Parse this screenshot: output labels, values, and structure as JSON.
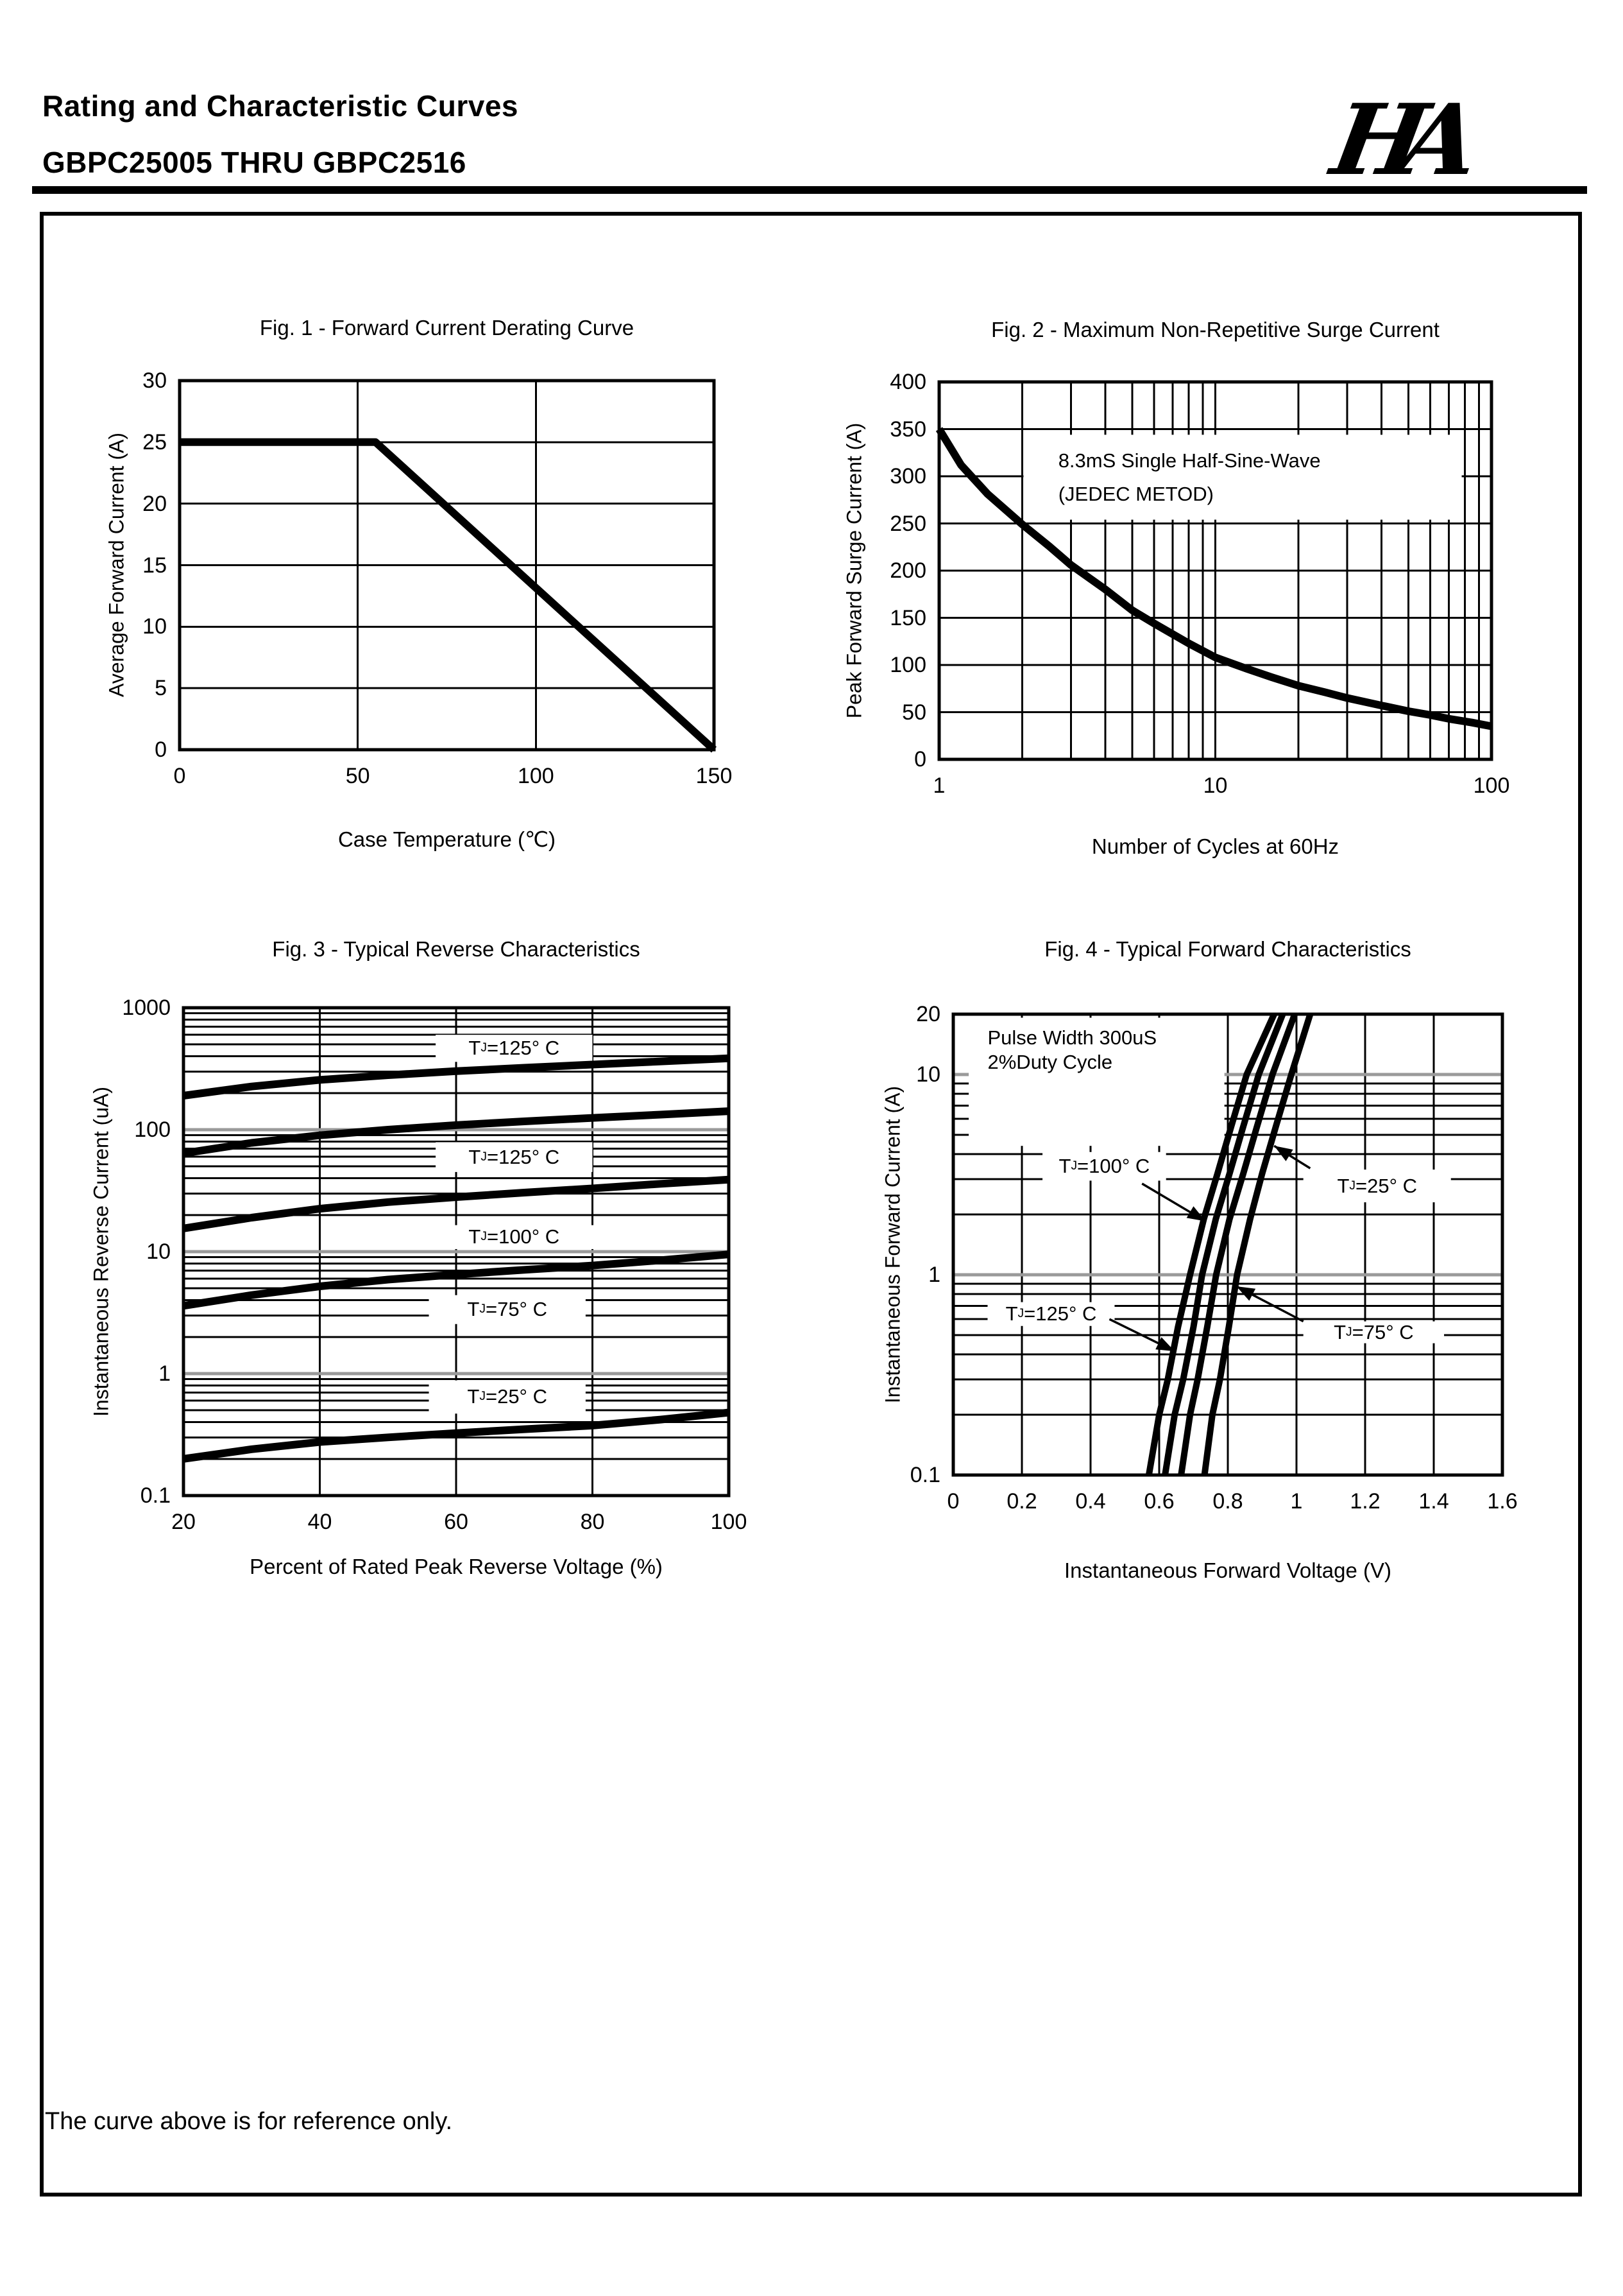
{
  "page": {
    "title": "Rating and Characteristic Curves",
    "part_range": "GBPC25005 THRU GBPC2516",
    "logo_text": "HA",
    "note": "The curve above is for reference only."
  },
  "chart_data": [
    {
      "type": "line",
      "title": "Fig. 1 - Forward Current Derating Curve",
      "xlabel": "Case Temperature (℃)",
      "ylabel": "Average Forward Current (A)",
      "x": {
        "scale": "linear",
        "min": 0,
        "max": 150,
        "ticks": [
          {
            "v": 0,
            "label": "0"
          },
          {
            "v": 50,
            "label": "50"
          },
          {
            "v": 100,
            "label": "100"
          },
          {
            "v": 150,
            "label": "150"
          }
        ],
        "grid": [
          50,
          100
        ]
      },
      "y": {
        "scale": "linear",
        "min": 0,
        "max": 30,
        "ticks": [
          {
            "v": 30,
            "label": "30"
          },
          {
            "v": 25,
            "label": "25"
          },
          {
            "v": 20,
            "label": "20"
          },
          {
            "v": 15,
            "label": "15"
          },
          {
            "v": 10,
            "label": "10"
          },
          {
            "v": 5,
            "label": "5"
          },
          {
            "v": 0,
            "label": "0"
          }
        ],
        "grid": [
          5,
          10,
          15,
          20,
          25
        ]
      },
      "series": [
        {
          "name": "forward-current-derating",
          "points": [
            [
              0,
              25
            ],
            [
              55,
              25
            ],
            [
              150,
              0
            ]
          ]
        }
      ],
      "annotations": [],
      "arrows": []
    },
    {
      "type": "line",
      "title": "Fig. 2 - Maximum Non-Repetitive Surge Current",
      "xlabel": "Number of Cycles at 60Hz",
      "ylabel": "Peak Forward Surge Current (A)",
      "x": {
        "scale": "log",
        "min": 1,
        "max": 100,
        "ticks": [
          {
            "v": 1,
            "label": "1"
          },
          {
            "v": 10,
            "label": "10"
          },
          {
            "v": 100,
            "label": "100"
          }
        ]
      },
      "y": {
        "scale": "linear",
        "min": 0,
        "max": 400,
        "ticks": [
          {
            "v": 400,
            "label": "400"
          },
          {
            "v": 350,
            "label": "350"
          },
          {
            "v": 300,
            "label": "300"
          },
          {
            "v": 250,
            "label": "250"
          },
          {
            "v": 200,
            "label": "200"
          },
          {
            "v": 150,
            "label": "150"
          },
          {
            "v": 100,
            "label": "100"
          },
          {
            "v": 50,
            "label": "50"
          },
          {
            "v": 0,
            "label": "0"
          }
        ],
        "grid": [
          50,
          100,
          150,
          200,
          250,
          300,
          350
        ]
      },
      "series": [
        {
          "name": "max-surge-current",
          "points": [
            [
              1,
              350
            ],
            [
              1.2,
              312
            ],
            [
              1.5,
              281
            ],
            [
              2,
              249
            ],
            [
              2.5,
              226
            ],
            [
              3,
              206
            ],
            [
              4,
              180
            ],
            [
              5,
              158
            ],
            [
              6,
              144
            ],
            [
              8,
              123
            ],
            [
              10,
              108
            ],
            [
              13,
              96
            ],
            [
              16,
              87
            ],
            [
              20,
              78
            ],
            [
              25,
              71
            ],
            [
              30,
              65
            ],
            [
              40,
              57
            ],
            [
              50,
              51
            ],
            [
              60,
              47
            ],
            [
              70,
              43
            ],
            [
              85,
              39
            ],
            [
              100,
              35
            ]
          ]
        }
      ],
      "annotations": [
        {
          "box": {
            "x1": 2.02,
            "y1": 254,
            "x2": 78,
            "y2": 344
          },
          "lines": [
            {
              "text": "8.3mS Single Half-Sine-Wave",
              "x": 2.7,
              "y": 316
            },
            {
              "text": "(JEDEC METOD)",
              "x": 2.7,
              "y": 281
            }
          ]
        }
      ],
      "arrows": []
    },
    {
      "type": "line",
      "title": "Fig. 3 - Typical Reverse Characteristics",
      "xlabel": "Percent of Rated Peak Reverse Voltage (%)",
      "ylabel": "Instantaneous Reverse Current (uA)",
      "x": {
        "scale": "linear",
        "min": 20,
        "max": 100,
        "ticks": [
          {
            "v": 20,
            "label": "20"
          },
          {
            "v": 40,
            "label": "40"
          },
          {
            "v": 60,
            "label": "60"
          },
          {
            "v": 80,
            "label": "80"
          },
          {
            "v": 100,
            "label": "100"
          }
        ],
        "grid": [
          40,
          60,
          80
        ]
      },
      "y": {
        "scale": "log",
        "min": 0.1,
        "max": 1000,
        "ticks": [
          {
            "v": 1000,
            "label": "1000"
          },
          {
            "v": 100,
            "label": "100"
          },
          {
            "v": 10,
            "label": "10"
          },
          {
            "v": 1,
            "label": "1"
          },
          {
            "v": 0.1,
            "label": "0.1"
          }
        ]
      },
      "series": [
        {
          "name": "TJ=125° C (upper)",
          "points": [
            [
              20,
              190
            ],
            [
              30,
              226
            ],
            [
              40,
              256
            ],
            [
              50,
              280
            ],
            [
              60,
              302
            ],
            [
              70,
              322
            ],
            [
              80,
              342
            ],
            [
              90,
              363
            ],
            [
              100,
              385
            ]
          ]
        },
        {
          "name": "TJ=125° C (lower)",
          "points": [
            [
              20,
              64
            ],
            [
              30,
              78
            ],
            [
              40,
              90
            ],
            [
              50,
              100
            ],
            [
              60,
              109
            ],
            [
              70,
              117
            ],
            [
              80,
              125
            ],
            [
              90,
              133
            ],
            [
              100,
              142
            ]
          ]
        },
        {
          "name": "TJ=100° C",
          "points": [
            [
              20,
              15.5
            ],
            [
              30,
              19
            ],
            [
              40,
              22.5
            ],
            [
              50,
              25.5
            ],
            [
              60,
              28
            ],
            [
              70,
              30.5
            ],
            [
              80,
              33
            ],
            [
              90,
              36
            ],
            [
              100,
              39
            ]
          ]
        },
        {
          "name": "TJ=75° C",
          "points": [
            [
              20,
              3.6
            ],
            [
              30,
              4.4
            ],
            [
              40,
              5.2
            ],
            [
              50,
              5.9
            ],
            [
              60,
              6.5
            ],
            [
              70,
              7.1
            ],
            [
              80,
              7.7
            ],
            [
              90,
              8.5
            ],
            [
              100,
              9.5
            ]
          ]
        },
        {
          "name": "TJ=25° C",
          "points": [
            [
              20,
              0.2
            ],
            [
              30,
              0.24
            ],
            [
              40,
              0.275
            ],
            [
              50,
              0.3
            ],
            [
              60,
              0.325
            ],
            [
              70,
              0.35
            ],
            [
              80,
              0.375
            ],
            [
              90,
              0.42
            ],
            [
              100,
              0.48
            ]
          ]
        }
      ],
      "annotations": [
        {
          "box": {
            "x1": 57,
            "y1": 360,
            "x2": 80,
            "y2": 600
          },
          "label": "TJ=125° C"
        },
        {
          "box": {
            "x1": 57,
            "y1": 45,
            "x2": 80,
            "y2": 79
          },
          "label": "TJ=125° C"
        },
        {
          "box": {
            "x1": 56,
            "y1": 10.5,
            "x2": 81,
            "y2": 16.5
          },
          "label": "TJ=100° C"
        },
        {
          "box": {
            "x1": 56,
            "y1": 2.55,
            "x2": 79,
            "y2": 4.4
          },
          "label": "TJ=75° C"
        },
        {
          "box": {
            "x1": 56,
            "y1": 0.47,
            "x2": 79,
            "y2": 0.88
          },
          "label": "TJ=25° C"
        }
      ],
      "arrows": []
    },
    {
      "type": "line",
      "title": "Fig. 4 - Typical Forward Characteristics",
      "xlabel": "Instantaneous Forward Voltage (V)",
      "ylabel": "Instantaneous Forward Current (A)",
      "x": {
        "scale": "linear",
        "min": 0,
        "max": 1.6,
        "ticks": [
          {
            "v": 0,
            "label": "0"
          },
          {
            "v": 0.2,
            "label": "0.2"
          },
          {
            "v": 0.4,
            "label": "0.4"
          },
          {
            "v": 0.6,
            "label": "0.6"
          },
          {
            "v": 0.8,
            "label": "0.8"
          },
          {
            "v": 1,
            "label": "1"
          },
          {
            "v": 1.2,
            "label": "1.2"
          },
          {
            "v": 1.4,
            "label": "1.4"
          },
          {
            "v": 1.6,
            "label": "1.6"
          }
        ],
        "grid": [
          0.2,
          0.4,
          0.6,
          0.8,
          1.0,
          1.2,
          1.4
        ]
      },
      "y": {
        "scale": "log",
        "min": 0.1,
        "max": 20,
        "ticks": [
          {
            "v": 20,
            "label": "20"
          },
          {
            "v": 10,
            "label": "10"
          },
          {
            "v": 1,
            "label": "1"
          },
          {
            "v": 0.1,
            "label": "0.1"
          }
        ]
      },
      "series": [
        {
          "name": "TJ=125° C",
          "points": [
            [
              0.57,
              0.1
            ],
            [
              0.6,
              0.2
            ],
            [
              0.625,
              0.3
            ],
            [
              0.655,
              0.55
            ],
            [
              0.69,
              1
            ],
            [
              0.73,
              1.9
            ],
            [
              0.77,
              3.2
            ],
            [
              0.81,
              5.5
            ],
            [
              0.855,
              10
            ],
            [
              0.935,
              20
            ]
          ]
        },
        {
          "name": "TJ=100° C",
          "points": [
            [
              0.617,
              0.1
            ],
            [
              0.645,
              0.2
            ],
            [
              0.67,
              0.3
            ],
            [
              0.7,
              0.55
            ],
            [
              0.725,
              1
            ],
            [
              0.765,
              1.9
            ],
            [
              0.805,
              3.2
            ],
            [
              0.845,
              5.5
            ],
            [
              0.89,
              10
            ],
            [
              0.96,
              20
            ]
          ]
        },
        {
          "name": "TJ=75° C",
          "points": [
            [
              0.664,
              0.1
            ],
            [
              0.69,
              0.2
            ],
            [
              0.712,
              0.3
            ],
            [
              0.74,
              0.55
            ],
            [
              0.766,
              1
            ],
            [
              0.805,
              1.9
            ],
            [
              0.845,
              3.2
            ],
            [
              0.885,
              5.5
            ],
            [
              0.93,
              10
            ],
            [
              0.995,
              20
            ]
          ]
        },
        {
          "name": "TJ=25° C",
          "points": [
            [
              0.732,
              0.1
            ],
            [
              0.755,
              0.2
            ],
            [
              0.777,
              0.3
            ],
            [
              0.803,
              0.55
            ],
            [
              0.827,
              1
            ],
            [
              0.865,
              1.9
            ],
            [
              0.9,
              3.2
            ],
            [
              0.94,
              5.5
            ],
            [
              0.985,
              10
            ],
            [
              1.04,
              20
            ]
          ]
        }
      ],
      "annotations": [
        {
          "box": {
            "x1": 0.045,
            "y1": 4.4,
            "x2": 0.79,
            "y2": 19.2
          },
          "lines": [
            {
              "text": "Pulse Width 300uS",
              "x": 0.1,
              "y": 15.2
            },
            {
              "text": "2%Duty Cycle",
              "x": 0.1,
              "y": 11.5
            }
          ]
        },
        {
          "box": {
            "x1": 0.26,
            "y1": 2.95,
            "x2": 0.62,
            "y2": 4.1
          },
          "label": "TJ=100° C"
        },
        {
          "box": {
            "x1": 1.02,
            "y1": 2.3,
            "x2": 1.45,
            "y2": 3.35
          },
          "label": "TJ=25° C"
        },
        {
          "box": {
            "x1": 0.1,
            "y1": 0.555,
            "x2": 0.47,
            "y2": 0.73
          },
          "label": "TJ=125° C"
        },
        {
          "box": {
            "x1": 1.02,
            "y1": 0.455,
            "x2": 1.43,
            "y2": 0.585
          },
          "label": "TJ=75° C"
        }
      ],
      "arrows": [
        {
          "x1": 0.55,
          "y1": 2.85,
          "x2": 0.735,
          "y2": 1.85
        },
        {
          "x1": 1.04,
          "y1": 3.4,
          "x2": 0.935,
          "y2": 4.4
        },
        {
          "x1": 0.455,
          "y1": 0.6,
          "x2": 0.645,
          "y2": 0.415
        },
        {
          "x1": 1.02,
          "y1": 0.585,
          "x2": 0.825,
          "y2": 0.875
        }
      ]
    }
  ]
}
